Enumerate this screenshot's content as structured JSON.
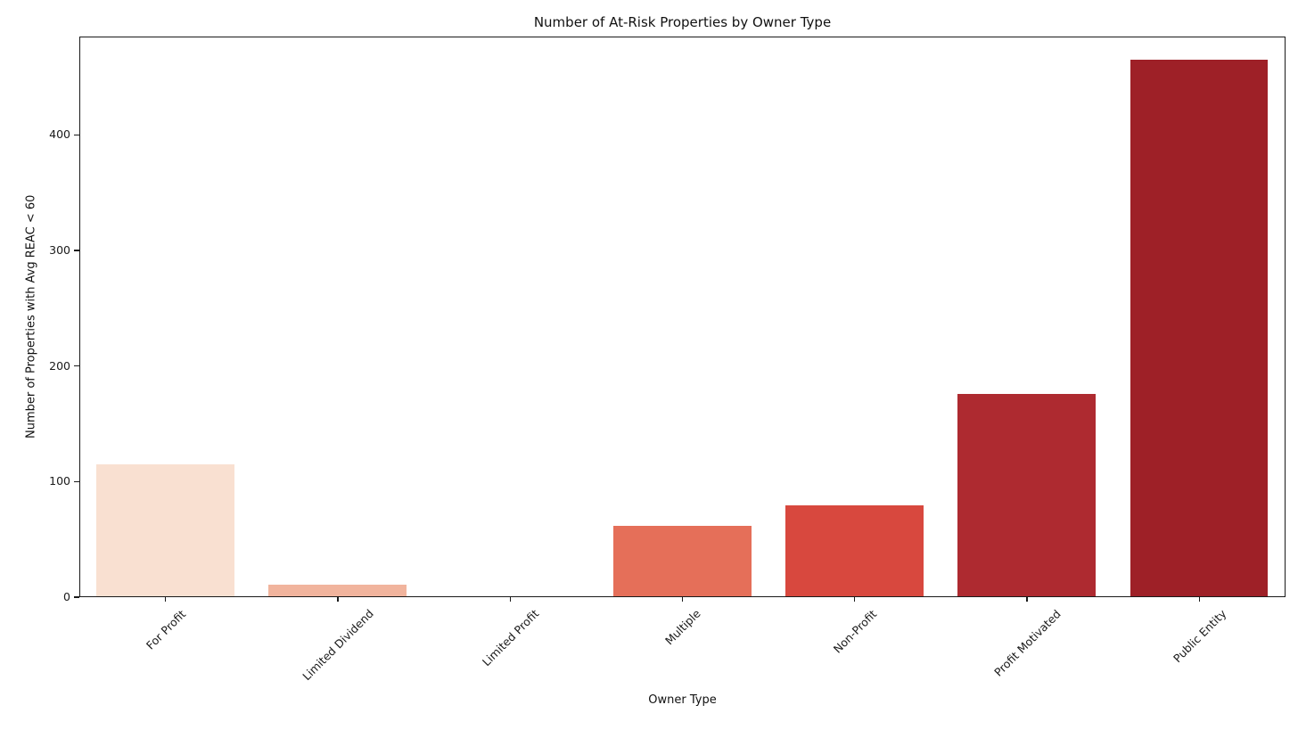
{
  "chart_data": {
    "type": "bar",
    "title": "Number of At-Risk Properties by Owner Type",
    "xlabel": "Owner Type",
    "ylabel": "Number of Properties with Avg REAC < 60",
    "categories": [
      "For Profit",
      "Limited Dividend",
      "Limited Profit",
      "Multiple",
      "Non-Profit",
      "Profit Motivated",
      "Public Entity"
    ],
    "values": [
      114,
      10,
      0,
      61,
      79,
      175,
      464
    ],
    "bar_colors": [
      "#f9e0d1",
      "#f1b49d",
      "#f4957a",
      "#e56f59",
      "#d8483e",
      "#ae2a30",
      "#9e2027"
    ],
    "yticks": [
      0,
      100,
      200,
      300,
      400
    ],
    "ylim": [
      0,
      485
    ],
    "grid": false,
    "legend_position": "none",
    "bar_width_fraction": 0.8,
    "x_tick_rotation_deg": 45,
    "axis_color": "#1a1a1a",
    "background_color": "#ffffff"
  }
}
